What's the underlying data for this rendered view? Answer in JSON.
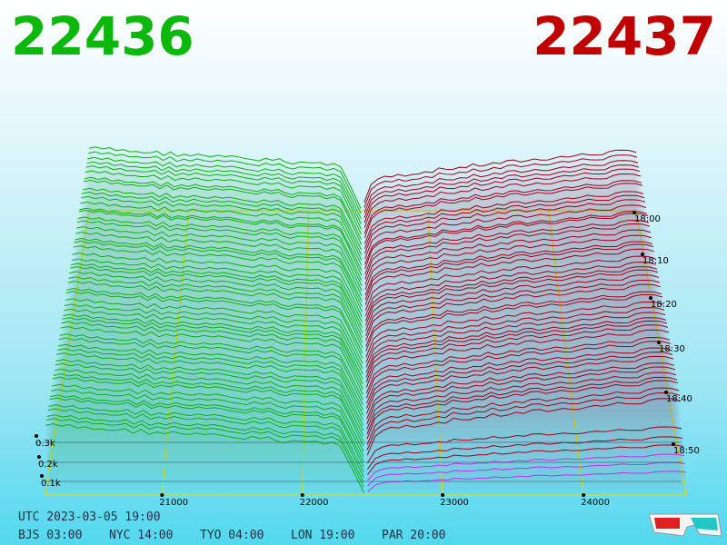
{
  "header": {
    "bid": "22436",
    "ask": "22437"
  },
  "price_axis": [
    "21000",
    "22000",
    "23000",
    "24000"
  ],
  "volume_axis": [
    "0.3k",
    "0.2k",
    "0.1k"
  ],
  "time_axis": [
    "18:00",
    "18:10",
    "18:20",
    "18:30",
    "18:40",
    "18:50"
  ],
  "footer": {
    "utc": "UTC 2023-03-05 19:00",
    "zones": [
      "BJS 03:00",
      "NYC 14:00",
      "TYO 04:00",
      "LON 19:00",
      "PAR 20:00"
    ]
  }
}
